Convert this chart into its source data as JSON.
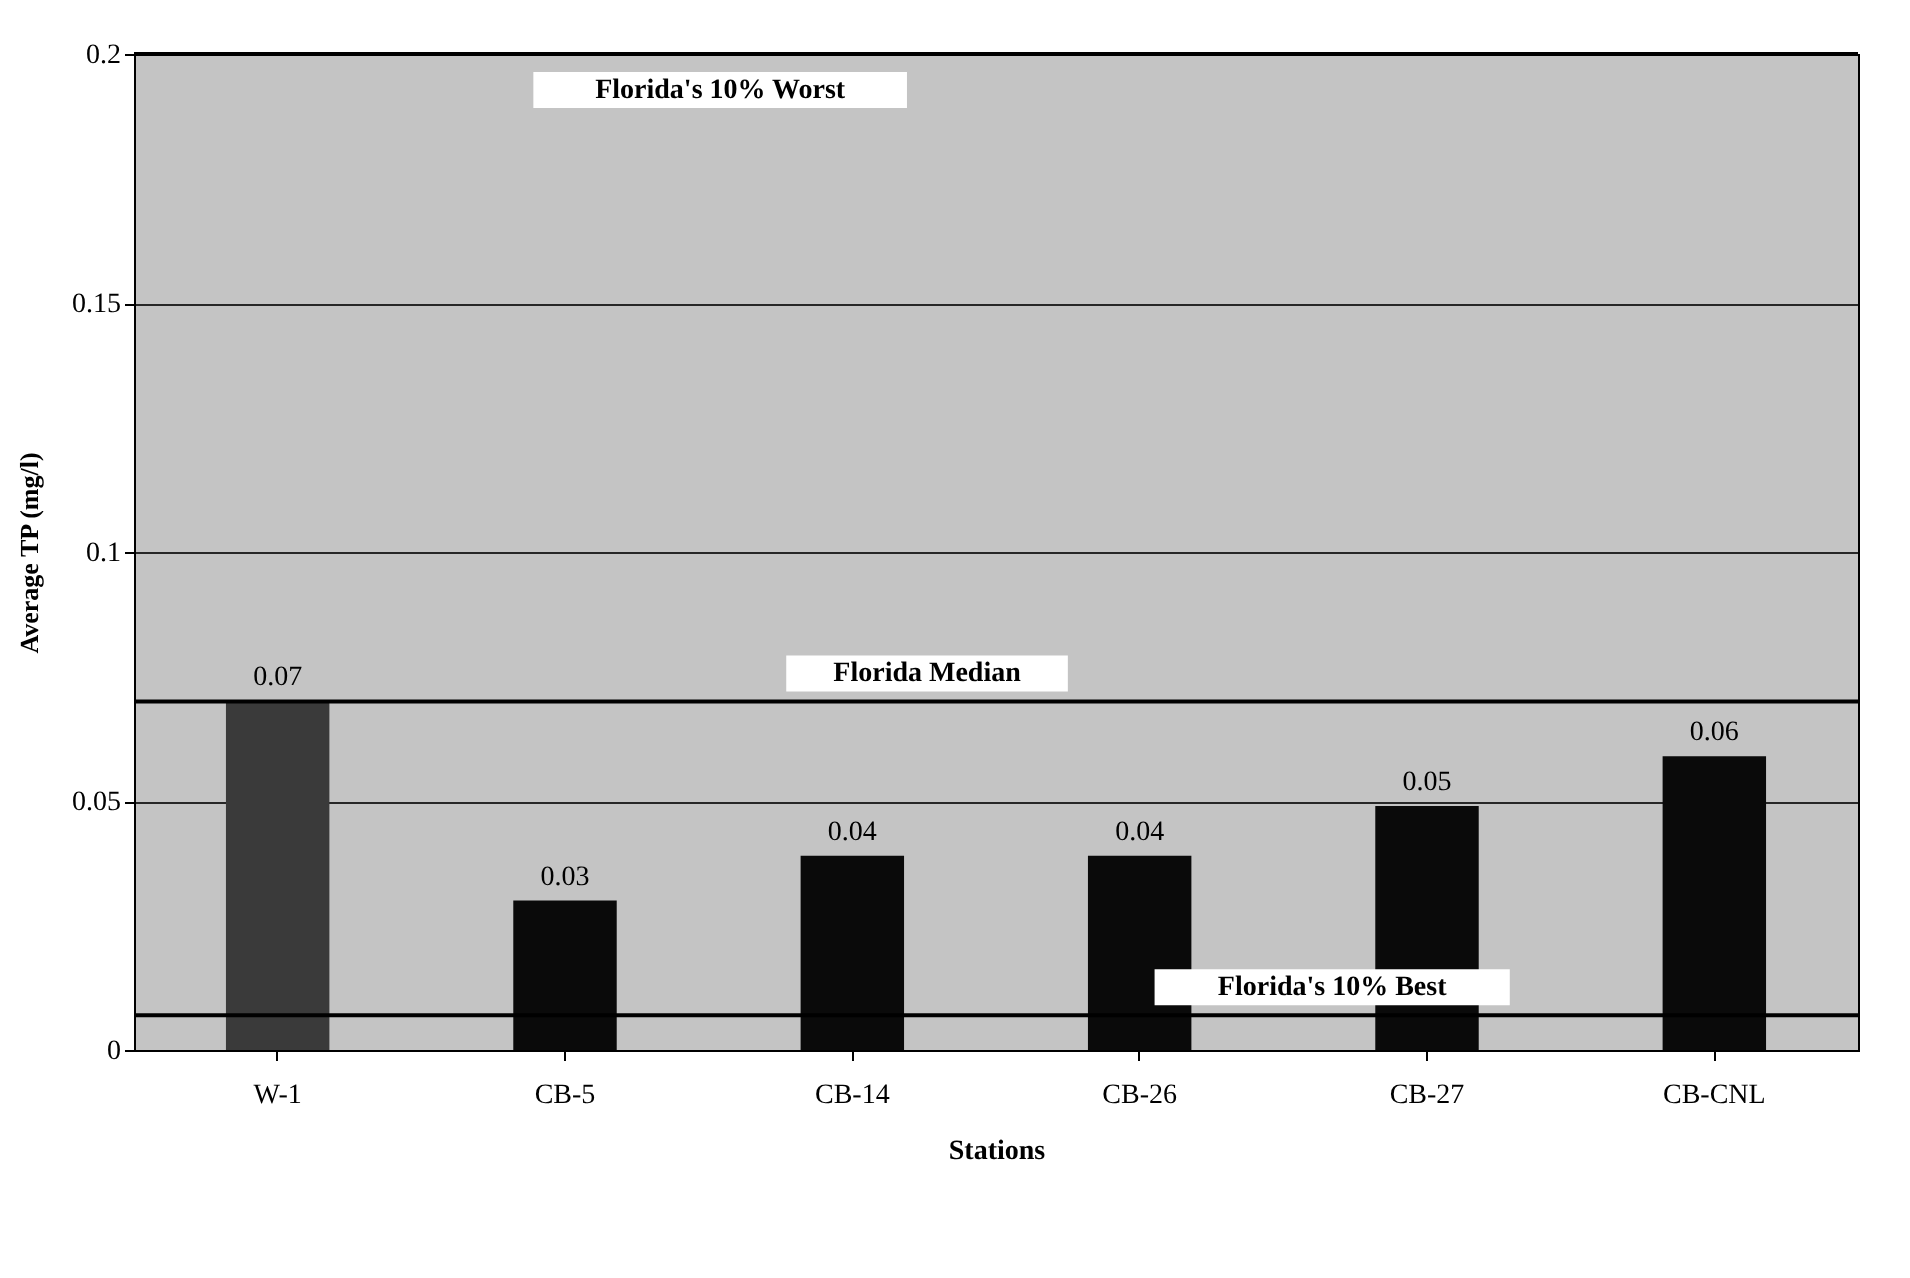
{
  "chart_data": {
    "type": "bar",
    "xlabel": "Stations",
    "ylabel": "Average TP (mg/l)",
    "categories": [
      "W-1",
      "CB-5",
      "CB-14",
      "CB-26",
      "CB-27",
      "CB-CNL"
    ],
    "values": [
      0.07,
      0.03,
      0.039,
      0.039,
      0.049,
      0.059
    ],
    "value_labels": [
      "0.07",
      "0.03",
      "0.04",
      "0.04",
      "0.05",
      "0.06"
    ],
    "colors": [
      "#3a3a3a",
      "#0a0a0a",
      "#0a0a0a",
      "#0a0a0a",
      "#0a0a0a",
      "#0a0a0a"
    ],
    "ylim": [
      0,
      0.2
    ],
    "yticks": [
      0,
      0.05,
      0.1,
      0.15,
      0.2
    ],
    "grid": "y",
    "ref_lines": [
      {
        "axis": "y",
        "value": 0.2,
        "label": "Florida's 10% Worst",
        "color": "#000000"
      },
      {
        "axis": "y",
        "value": 0.07,
        "label": "Florida Median",
        "color": "#000000"
      },
      {
        "axis": "y",
        "value": 0.007,
        "label": "Florida's 10% Best",
        "color": "#000000"
      }
    ]
  }
}
